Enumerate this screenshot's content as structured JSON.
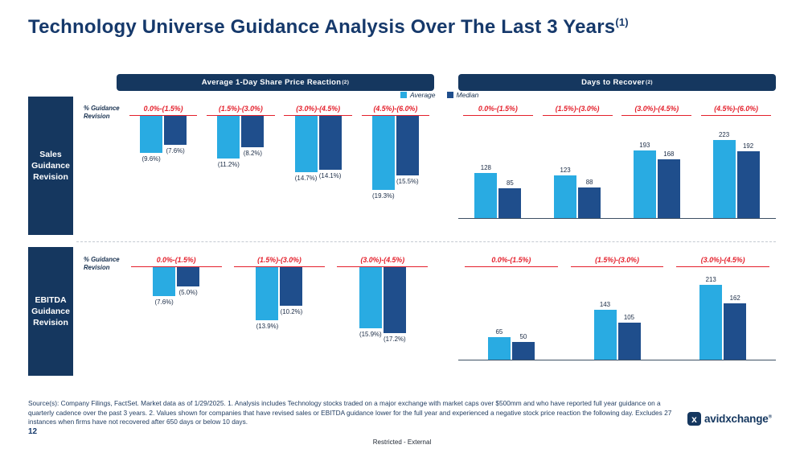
{
  "slide": {
    "title": "Technology Universe Guidance Analysis Over The Last 3 Years",
    "title_sup": "(1)",
    "page_number": "12",
    "classification": "Restricted - External",
    "source_text": "Source(s): Company Filings, FactSet. Market data as of 1/29/2025. 1. Analysis includes Technology stocks traded on a major exchange with market caps over $500mm and who have reported full year guidance on a quarterly cadence over the past 3 years. 2. Values shown for companies that have revised sales or EBITDA guidance lower for the full year and experienced a negative stock price reaction the following day. Excludes 27 instances when firms have not recovered after 650 days or below 10 days.",
    "logo_text": "avidxchange",
    "logo_reg": "®",
    "logo_icon_glyph": "x"
  },
  "panels": {
    "left_header": "Average 1-Day Share Price Reaction",
    "left_header_sup": "(2)",
    "right_header": "Days to Recover",
    "right_header_sup": "(2)"
  },
  "legend": [
    {
      "label": "Average",
      "color": "#29ABE2"
    },
    {
      "label": "Median",
      "color": "#1F4E8C"
    }
  ],
  "row_labels": [
    {
      "label": "Sales Guidance Revision"
    },
    {
      "label": "EBITDA Guidance Revision"
    }
  ],
  "colors": {
    "navy": "#15375F",
    "title_navy": "#16396B",
    "average_bar": "#29ABE2",
    "median_bar": "#1F4E8C",
    "category_red": "#E4202C"
  },
  "chart_data": [
    {
      "type": "bar",
      "title": "Sales Guidance Revision - Average 1-Day Share Price Reaction",
      "direction": "down",
      "axis_label": "% Guidance Revision",
      "categories": [
        "0.0%-(1.5%)",
        "(1.5%)-(3.0%)",
        "(3.0%)-(4.5%)",
        "(4.5%)-(6.0%)"
      ],
      "series": [
        {
          "name": "Average",
          "values": [
            -9.6,
            -11.2,
            -14.7,
            -19.3
          ],
          "labels": [
            "(9.6%)",
            "(11.2%)",
            "(14.7%)",
            "(19.3%)"
          ]
        },
        {
          "name": "Median",
          "values": [
            -7.6,
            -8.2,
            -14.1,
            -15.5
          ],
          "labels": [
            "(7.6%)",
            "(8.2%)",
            "(14.1%)",
            "(15.5%)"
          ]
        }
      ],
      "ylim": [
        -20,
        0
      ],
      "value_unit": "percent",
      "legend_position": "top-right",
      "grid": false
    },
    {
      "type": "bar",
      "title": "Sales Guidance Revision - Days to Recover",
      "direction": "up",
      "axis_label": "",
      "categories": [
        "0.0%-(1.5%)",
        "(1.5%)-(3.0%)",
        "(3.0%)-(4.5%)",
        "(4.5%)-(6.0%)"
      ],
      "series": [
        {
          "name": "Average",
          "values": [
            128,
            123,
            193,
            223
          ],
          "labels": [
            "128",
            "123",
            "193",
            "223"
          ]
        },
        {
          "name": "Median",
          "values": [
            85,
            88,
            168,
            192
          ],
          "labels": [
            "85",
            "88",
            "168",
            "192"
          ]
        }
      ],
      "ylim": [
        0,
        230
      ],
      "value_unit": "days",
      "grid": false
    },
    {
      "type": "bar",
      "title": "EBITDA Guidance Revision - Average 1-Day Share Price Reaction",
      "direction": "down",
      "axis_label": "% Guidance Revision",
      "categories": [
        "0.0%-(1.5%)",
        "(1.5%)-(3.0%)",
        "(3.0%)-(4.5%)"
      ],
      "series": [
        {
          "name": "Average",
          "values": [
            -7.6,
            -13.9,
            -15.9
          ],
          "labels": [
            "(7.6%)",
            "(13.9%)",
            "(15.9%)"
          ]
        },
        {
          "name": "Median",
          "values": [
            -5.0,
            -10.2,
            -17.2
          ],
          "labels": [
            "(5.0%)",
            "(10.2%)",
            "(17.2%)"
          ]
        }
      ],
      "ylim": [
        -20,
        0
      ],
      "value_unit": "percent",
      "grid": false
    },
    {
      "type": "bar",
      "title": "EBITDA Guidance Revision - Days to Recover",
      "direction": "up",
      "axis_label": "",
      "categories": [
        "0.0%-(1.5%)",
        "(1.5%)-(3.0%)",
        "(3.0%)-(4.5%)"
      ],
      "series": [
        {
          "name": "Average",
          "values": [
            65,
            143,
            213
          ],
          "labels": [
            "65",
            "143",
            "213"
          ]
        },
        {
          "name": "Median",
          "values": [
            50,
            105,
            162
          ],
          "labels": [
            "50",
            "105",
            "162"
          ]
        }
      ],
      "ylim": [
        0,
        230
      ],
      "value_unit": "days",
      "grid": false
    }
  ]
}
